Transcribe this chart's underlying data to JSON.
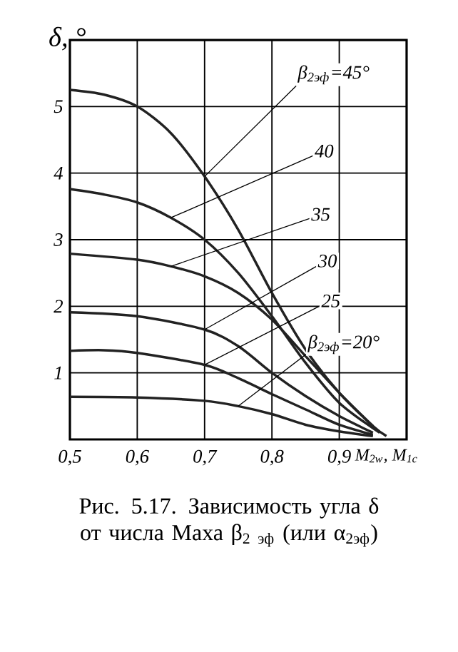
{
  "chart_data": {
    "type": "line",
    "xlabel": "M$_{2w}$, M$_{1c}$",
    "ylabel": "δ, °",
    "xlim": [
      0.5,
      1.0
    ],
    "ylim": [
      0,
      6
    ],
    "xticks": [
      {
        "value": 0.5,
        "label": "0,5"
      },
      {
        "value": 0.6,
        "label": "0,6"
      },
      {
        "value": 0.7,
        "label": "0,7"
      },
      {
        "value": 0.8,
        "label": "0,8"
      },
      {
        "value": 0.9,
        "label": "0,9"
      }
    ],
    "yticks": [
      1,
      2,
      3,
      4,
      5
    ],
    "grid": true,
    "marker": "none",
    "line_style": "solid",
    "series": [
      {
        "name": "β$_{2эф}$=45°",
        "color": "#222222",
        "x": [
          0.5,
          0.55,
          0.6,
          0.65,
          0.7,
          0.75,
          0.8,
          0.85,
          0.9,
          0.95,
          0.97
        ],
        "values": [
          5.25,
          5.18,
          5.0,
          4.6,
          3.95,
          3.15,
          2.2,
          1.35,
          0.7,
          0.2,
          0.05
        ]
      },
      {
        "name": "40",
        "color": "#222222",
        "x": [
          0.5,
          0.55,
          0.6,
          0.65,
          0.7,
          0.75,
          0.8,
          0.85,
          0.9,
          0.96
        ],
        "values": [
          3.76,
          3.68,
          3.56,
          3.33,
          3.0,
          2.5,
          1.85,
          1.15,
          0.55,
          0.1
        ]
      },
      {
        "name": "35",
        "color": "#222222",
        "x": [
          0.5,
          0.6,
          0.65,
          0.7,
          0.75,
          0.8,
          0.85,
          0.9,
          0.95
        ],
        "values": [
          2.79,
          2.7,
          2.6,
          2.45,
          2.2,
          1.8,
          1.25,
          0.7,
          0.2
        ]
      },
      {
        "name": "30",
        "color": "#222222",
        "x": [
          0.5,
          0.6,
          0.7,
          0.75,
          0.8,
          0.85,
          0.9,
          0.95
        ],
        "values": [
          1.91,
          1.85,
          1.65,
          1.4,
          1.0,
          0.65,
          0.35,
          0.1
        ]
      },
      {
        "name": "25",
        "color": "#222222",
        "x": [
          0.5,
          0.55,
          0.6,
          0.7,
          0.75,
          0.8,
          0.85,
          0.9,
          0.95
        ],
        "values": [
          1.33,
          1.34,
          1.3,
          1.12,
          0.92,
          0.68,
          0.45,
          0.22,
          0.07
        ]
      },
      {
        "name": "β$_{2эф}$=20°",
        "color": "#222222",
        "x": [
          0.5,
          0.6,
          0.7,
          0.75,
          0.8,
          0.85,
          0.9,
          0.95
        ],
        "values": [
          0.64,
          0.63,
          0.58,
          0.5,
          0.38,
          0.22,
          0.12,
          0.05
        ]
      }
    ],
    "annotations": [
      "Рис. 5.17. Зависимость угла δ от числа Маха β$_{2 эф}$ (или α$_{2эф}$)"
    ]
  }
}
